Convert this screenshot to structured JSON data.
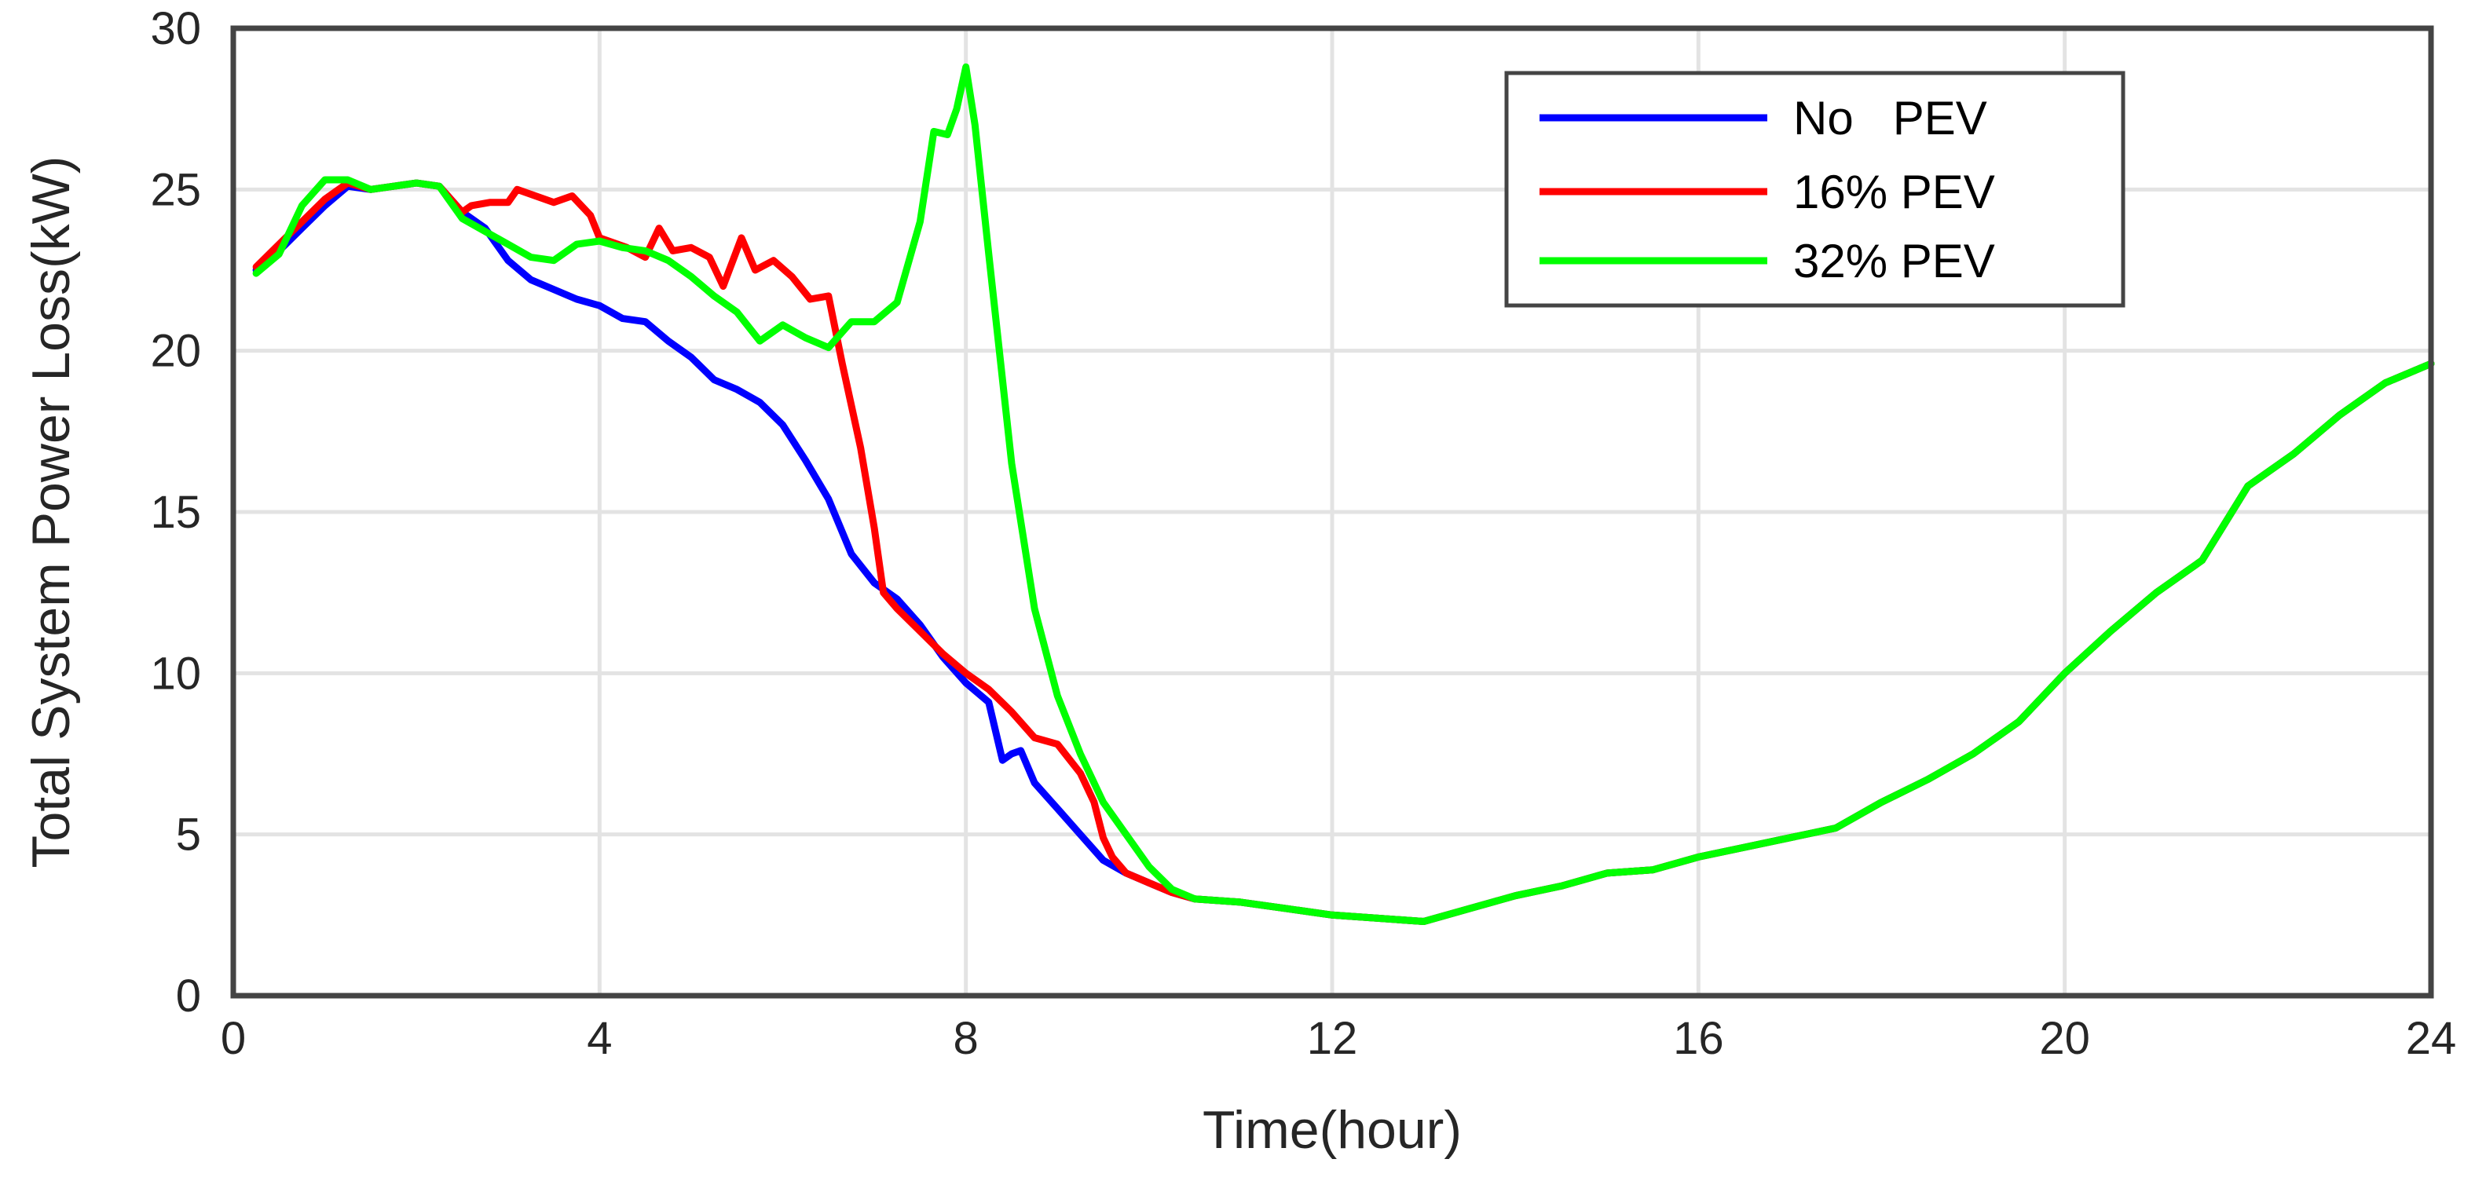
{
  "chart_data": {
    "type": "line",
    "title": "",
    "xlabel": "Time(hour)",
    "ylabel": "Total System Power Loss(kW)",
    "xlim": [
      0,
      24
    ],
    "ylim": [
      0,
      30
    ],
    "xticks": [
      0,
      4,
      8,
      12,
      16,
      20,
      24
    ],
    "yticks": [
      0,
      5,
      10,
      15,
      20,
      25,
      30
    ],
    "grid": true,
    "legend_position": "top-right",
    "series": [
      {
        "name": "No   PEV",
        "color": "#0000ff",
        "points": [
          [
            0.25,
            22.5
          ],
          [
            0.5,
            23.1
          ],
          [
            0.75,
            23.8
          ],
          [
            1.0,
            24.5
          ],
          [
            1.25,
            25.1
          ],
          [
            1.5,
            25.0
          ],
          [
            1.75,
            25.1
          ],
          [
            2.0,
            25.2
          ],
          [
            2.25,
            25.1
          ],
          [
            2.5,
            24.3
          ],
          [
            2.75,
            23.8
          ],
          [
            3.0,
            22.8
          ],
          [
            3.25,
            22.2
          ],
          [
            3.5,
            21.9
          ],
          [
            3.75,
            21.6
          ],
          [
            4.0,
            21.4
          ],
          [
            4.25,
            21.0
          ],
          [
            4.5,
            20.9
          ],
          [
            4.75,
            20.3
          ],
          [
            5.0,
            19.8
          ],
          [
            5.25,
            19.1
          ],
          [
            5.5,
            18.8
          ],
          [
            5.75,
            18.4
          ],
          [
            6.0,
            17.7
          ],
          [
            6.25,
            16.6
          ],
          [
            6.5,
            15.4
          ],
          [
            6.75,
            13.7
          ],
          [
            7.0,
            12.8
          ],
          [
            7.25,
            12.3
          ],
          [
            7.5,
            11.5
          ],
          [
            7.75,
            10.5
          ],
          [
            8.0,
            9.7
          ],
          [
            8.25,
            9.1
          ],
          [
            8.4,
            7.3
          ],
          [
            8.5,
            7.5
          ],
          [
            8.6,
            7.6
          ],
          [
            8.75,
            6.6
          ],
          [
            9.0,
            5.8
          ],
          [
            9.25,
            5.0
          ],
          [
            9.5,
            4.2
          ],
          [
            9.75,
            3.8
          ],
          [
            10.0,
            3.5
          ],
          [
            10.25,
            3.2
          ],
          [
            10.5,
            3.0
          ],
          [
            11.0,
            2.9
          ],
          [
            11.5,
            2.7
          ],
          [
            12.0,
            2.5
          ],
          [
            12.5,
            2.4
          ],
          [
            13.0,
            2.3
          ],
          [
            13.5,
            2.7
          ],
          [
            14.0,
            3.1
          ],
          [
            14.5,
            3.4
          ],
          [
            15.0,
            3.8
          ],
          [
            15.5,
            3.9
          ],
          [
            16.0,
            4.3
          ],
          [
            16.5,
            4.6
          ],
          [
            17.0,
            4.9
          ],
          [
            17.5,
            5.2
          ],
          [
            18.0,
            6.0
          ],
          [
            18.5,
            6.7
          ],
          [
            19.0,
            7.5
          ],
          [
            19.5,
            8.5
          ],
          [
            20.0,
            10.0
          ],
          [
            20.5,
            11.3
          ],
          [
            21.0,
            12.5
          ],
          [
            21.5,
            13.5
          ],
          [
            22.0,
            15.8
          ],
          [
            22.5,
            16.8
          ],
          [
            23.0,
            18.0
          ],
          [
            23.5,
            19.0
          ],
          [
            24.0,
            19.6
          ]
        ]
      },
      {
        "name": "16% PEV",
        "color": "#ff0000",
        "points": [
          [
            0.25,
            22.6
          ],
          [
            0.5,
            23.3
          ],
          [
            0.75,
            24.0
          ],
          [
            1.0,
            24.7
          ],
          [
            1.25,
            25.2
          ],
          [
            1.5,
            25.0
          ],
          [
            1.75,
            25.1
          ],
          [
            2.0,
            25.2
          ],
          [
            2.25,
            25.1
          ],
          [
            2.5,
            24.3
          ],
          [
            2.6,
            24.5
          ],
          [
            2.8,
            24.6
          ],
          [
            3.0,
            24.6
          ],
          [
            3.1,
            25.0
          ],
          [
            3.3,
            24.8
          ],
          [
            3.5,
            24.6
          ],
          [
            3.7,
            24.8
          ],
          [
            3.9,
            24.2
          ],
          [
            4.0,
            23.5
          ],
          [
            4.3,
            23.2
          ],
          [
            4.5,
            22.9
          ],
          [
            4.65,
            23.8
          ],
          [
            4.8,
            23.1
          ],
          [
            5.0,
            23.2
          ],
          [
            5.2,
            22.9
          ],
          [
            5.35,
            22.0
          ],
          [
            5.55,
            23.5
          ],
          [
            5.7,
            22.5
          ],
          [
            5.9,
            22.8
          ],
          [
            6.1,
            22.3
          ],
          [
            6.3,
            21.6
          ],
          [
            6.5,
            21.7
          ],
          [
            6.65,
            19.6
          ],
          [
            6.85,
            17.0
          ],
          [
            7.0,
            14.5
          ],
          [
            7.1,
            12.5
          ],
          [
            7.25,
            12.0
          ],
          [
            7.5,
            11.3
          ],
          [
            7.75,
            10.6
          ],
          [
            8.0,
            10.0
          ],
          [
            8.25,
            9.5
          ],
          [
            8.5,
            8.8
          ],
          [
            8.75,
            8.0
          ],
          [
            9.0,
            7.8
          ],
          [
            9.25,
            6.9
          ],
          [
            9.4,
            6.0
          ],
          [
            9.5,
            4.9
          ],
          [
            9.6,
            4.3
          ],
          [
            9.75,
            3.8
          ],
          [
            10.0,
            3.5
          ],
          [
            10.25,
            3.2
          ],
          [
            10.5,
            3.0
          ],
          [
            11.0,
            2.9
          ],
          [
            11.5,
            2.7
          ],
          [
            12.0,
            2.5
          ],
          [
            12.5,
            2.4
          ],
          [
            13.0,
            2.3
          ],
          [
            13.5,
            2.7
          ],
          [
            14.0,
            3.1
          ],
          [
            14.5,
            3.4
          ],
          [
            15.0,
            3.8
          ],
          [
            15.5,
            3.9
          ],
          [
            16.0,
            4.3
          ],
          [
            16.5,
            4.6
          ],
          [
            17.0,
            4.9
          ],
          [
            17.5,
            5.2
          ],
          [
            18.0,
            6.0
          ],
          [
            18.5,
            6.7
          ],
          [
            19.0,
            7.5
          ],
          [
            19.5,
            8.5
          ],
          [
            20.0,
            10.0
          ],
          [
            20.5,
            11.3
          ],
          [
            21.0,
            12.5
          ],
          [
            21.5,
            13.5
          ],
          [
            22.0,
            15.8
          ],
          [
            22.5,
            16.8
          ],
          [
            23.0,
            18.0
          ],
          [
            23.5,
            19.0
          ],
          [
            24.0,
            19.6
          ]
        ]
      },
      {
        "name": "32% PEV",
        "color": "#00ff00",
        "points": [
          [
            0.25,
            22.4
          ],
          [
            0.5,
            23.0
          ],
          [
            0.75,
            24.5
          ],
          [
            1.0,
            25.3
          ],
          [
            1.25,
            25.3
          ],
          [
            1.5,
            25.0
          ],
          [
            1.75,
            25.1
          ],
          [
            2.0,
            25.2
          ],
          [
            2.25,
            25.1
          ],
          [
            2.5,
            24.1
          ],
          [
            2.75,
            23.7
          ],
          [
            3.0,
            23.3
          ],
          [
            3.25,
            22.9
          ],
          [
            3.5,
            22.8
          ],
          [
            3.75,
            23.3
          ],
          [
            4.0,
            23.4
          ],
          [
            4.25,
            23.2
          ],
          [
            4.5,
            23.1
          ],
          [
            4.75,
            22.8
          ],
          [
            5.0,
            22.3
          ],
          [
            5.25,
            21.7
          ],
          [
            5.5,
            21.2
          ],
          [
            5.75,
            20.3
          ],
          [
            6.0,
            20.8
          ],
          [
            6.25,
            20.4
          ],
          [
            6.5,
            20.1
          ],
          [
            6.75,
            20.9
          ],
          [
            7.0,
            20.9
          ],
          [
            7.25,
            21.5
          ],
          [
            7.5,
            24.0
          ],
          [
            7.65,
            26.8
          ],
          [
            7.8,
            26.7
          ],
          [
            7.9,
            27.5
          ],
          [
            8.0,
            28.8
          ],
          [
            8.1,
            27.0
          ],
          [
            8.25,
            23.0
          ],
          [
            8.5,
            16.5
          ],
          [
            8.75,
            12.0
          ],
          [
            9.0,
            9.3
          ],
          [
            9.25,
            7.5
          ],
          [
            9.5,
            6.0
          ],
          [
            9.75,
            5.0
          ],
          [
            10.0,
            4.0
          ],
          [
            10.25,
            3.3
          ],
          [
            10.5,
            3.0
          ],
          [
            11.0,
            2.9
          ],
          [
            11.5,
            2.7
          ],
          [
            12.0,
            2.5
          ],
          [
            12.5,
            2.4
          ],
          [
            13.0,
            2.3
          ],
          [
            13.5,
            2.7
          ],
          [
            14.0,
            3.1
          ],
          [
            14.5,
            3.4
          ],
          [
            15.0,
            3.8
          ],
          [
            15.5,
            3.9
          ],
          [
            16.0,
            4.3
          ],
          [
            16.5,
            4.6
          ],
          [
            17.0,
            4.9
          ],
          [
            17.5,
            5.2
          ],
          [
            18.0,
            6.0
          ],
          [
            18.5,
            6.7
          ],
          [
            19.0,
            7.5
          ],
          [
            19.5,
            8.5
          ],
          [
            20.0,
            10.0
          ],
          [
            20.5,
            11.3
          ],
          [
            21.0,
            12.5
          ],
          [
            21.5,
            13.5
          ],
          [
            22.0,
            15.8
          ],
          [
            22.5,
            16.8
          ],
          [
            23.0,
            18.0
          ],
          [
            23.5,
            19.0
          ],
          [
            24.0,
            19.6
          ]
        ]
      }
    ]
  }
}
